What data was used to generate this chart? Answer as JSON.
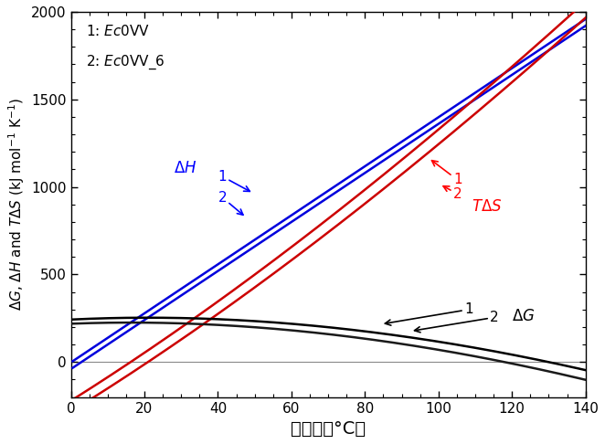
{
  "xlim": [
    0,
    140
  ],
  "ylim": [
    -200,
    2000
  ],
  "xticks": [
    0,
    20,
    40,
    60,
    80,
    100,
    120,
    140
  ],
  "yticks": [
    0,
    500,
    1000,
    1500,
    2000
  ],
  "curve_colors": {
    "dG1": "#000000",
    "dG2": "#1a1a1a",
    "dH1": "#0000dd",
    "dH2": "#0000dd",
    "TdS1": "#cc0000",
    "TdS2": "#cc0000"
  },
  "protein1": {
    "Tm": 130.0,
    "dHm": 1780,
    "dCp": 14.0
  },
  "protein2": {
    "Tm": 118.0,
    "dHm": 1650,
    "dCp": 14.0
  },
  "zero_line_color": "#888888",
  "zero_line_lw": 0.8
}
